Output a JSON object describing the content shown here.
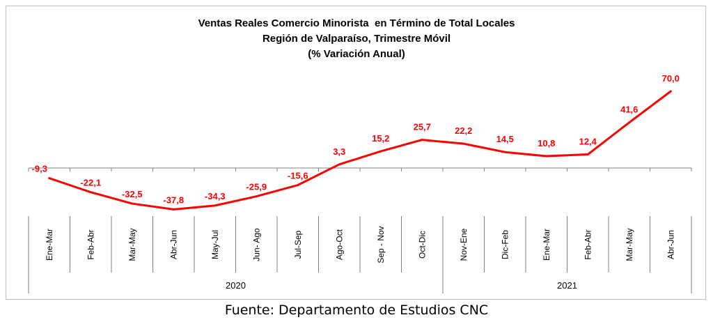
{
  "chart_data": {
    "type": "line",
    "title": [
      "Ventas Reales Comercio Minorista  en Término de Total Locales",
      "Región de Valparaíso, Trimestre Móvil",
      "(% Variación Anual)"
    ],
    "categories": [
      "Ene-Mar",
      "Feb-Abr",
      "Mar-May",
      "Abr-Jun",
      "May-Jul",
      "Jun- Ago",
      "Jul-Sep",
      "Ago-Oct",
      "Sep - Nov",
      "Oct-Dic",
      "Nov-Ene",
      "Dic-Feb",
      "Ene-Mar",
      "Feb-Abr",
      "Mar-May",
      "Abr-Jun"
    ],
    "year_groups": [
      {
        "label": "2020",
        "start": 0,
        "end": 9
      },
      {
        "label": "2021",
        "start": 10,
        "end": 15
      }
    ],
    "series": [
      {
        "values": [
          -9.3,
          -22.1,
          -32.5,
          -37.8,
          -34.3,
          -25.9,
          -15.6,
          3.3,
          15.2,
          25.7,
          22.2,
          14.5,
          10.8,
          12.4,
          41.6,
          70.0
        ],
        "labels": [
          "-9,3",
          "-22,1",
          "-32,5",
          "-37,8",
          "-34,3",
          "-25,9",
          "-15,6",
          "3,3",
          "15,2",
          "25,7",
          "22,2",
          "14,5",
          "10,8",
          "12,4",
          "41,6",
          "70,0"
        ],
        "color": "#ff0000"
      }
    ],
    "ylim": [
      -40,
      72
    ],
    "grid": false,
    "legend": "none"
  },
  "source": "Fuente: Departamento de Estudios CNC",
  "colors": {
    "line": "#ff0000",
    "axis": "#7f7f7f",
    "label": "#ff0000"
  }
}
